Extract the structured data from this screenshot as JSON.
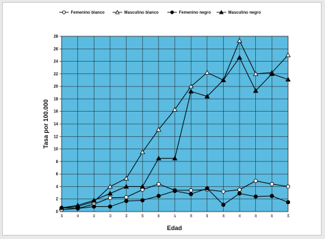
{
  "chart_data": {
    "type": "line",
    "title": "",
    "xlabel": "Edad",
    "ylabel": "Tasa por 100.000",
    "categories": [
      "10",
      "11",
      "12",
      "13",
      "14",
      "15",
      "16",
      "17",
      "18",
      "19",
      "20",
      "21",
      "22",
      "23",
      "24"
    ],
    "ylim": [
      0,
      28
    ],
    "yticks": [
      "0",
      "2",
      "4",
      "6",
      "8",
      "10",
      "12",
      "14",
      "16",
      "18",
      "20",
      "22",
      "24",
      "26",
      "28"
    ],
    "grid": true,
    "legend_position": "top",
    "plot_background": "#5bbbe0",
    "series": [
      {
        "name": "Femenino blanco",
        "marker": "open-circle",
        "values": [
          0.3,
          0.5,
          1.2,
          2.2,
          2.3,
          3.5,
          4.4,
          3.4,
          3.4,
          3.5,
          3.2,
          3.5,
          4.9,
          4.4,
          4.0
        ]
      },
      {
        "name": "Masculino blanco",
        "marker": "open-triangle",
        "values": [
          0.6,
          0.8,
          1.6,
          4.0,
          5.3,
          9.5,
          13.1,
          16.3,
          20.0,
          22.2,
          21.0,
          27.3,
          22.0,
          22.2,
          25.0
        ]
      },
      {
        "name": "Femenino negro",
        "marker": "filled-circle",
        "values": [
          0.6,
          0.5,
          0.8,
          0.8,
          1.7,
          1.8,
          2.5,
          3.3,
          2.8,
          3.7,
          1.1,
          2.9,
          2.4,
          2.5,
          1.5
        ]
      },
      {
        "name": "Masculino negro",
        "marker": "filled-triangle",
        "values": [
          0.6,
          1.0,
          1.8,
          2.9,
          4.0,
          4.0,
          8.5,
          8.5,
          19.2,
          18.4,
          21.0,
          24.6,
          19.3,
          22.0,
          21.1
        ]
      }
    ]
  }
}
